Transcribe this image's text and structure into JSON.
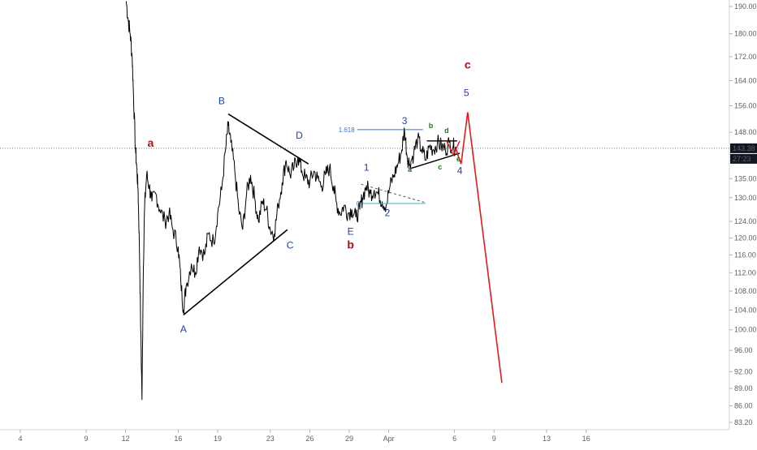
{
  "chart_data": {
    "type": "line",
    "y_axis": {
      "ticks": [
        "190.00",
        "180.00",
        "172.00",
        "164.00",
        "156.00",
        "148.00",
        "143.38",
        "135.00",
        "130.00",
        "124.00",
        "120.00",
        "116.00",
        "112.00",
        "108.00",
        "104.00",
        "100.00",
        "96.00",
        "92.00",
        "89.00",
        "86.00",
        "83.20"
      ],
      "last_price": "143.38",
      "countdown": "27:23",
      "scale": "log"
    },
    "x_axis": {
      "ticks": [
        "4",
        "9",
        "12",
        "16",
        "19",
        "23",
        "26",
        "29",
        "Apr",
        "6",
        "9",
        "13",
        "16"
      ]
    },
    "series": [
      {
        "values": [
          [
            12.05,
            192
          ],
          [
            12.2,
            185
          ],
          [
            12.35,
            180
          ],
          [
            12.5,
            172
          ],
          [
            12.6,
            160
          ],
          [
            12.75,
            143
          ],
          [
            12.85,
            138
          ],
          [
            12.95,
            132
          ],
          [
            13.05,
            118
          ],
          [
            13.15,
            100
          ],
          [
            13.25,
            87
          ],
          [
            13.35,
            113
          ],
          [
            13.45,
            128
          ],
          [
            13.6,
            136
          ],
          [
            13.8,
            133
          ],
          [
            14.0,
            129
          ],
          [
            14.3,
            131
          ],
          [
            14.6,
            127
          ],
          [
            15.0,
            124
          ],
          [
            15.3,
            126
          ],
          [
            15.6,
            122
          ],
          [
            16.0,
            118
          ],
          [
            16.2,
            110
          ],
          [
            16.4,
            104
          ],
          [
            16.6,
            109
          ],
          [
            17.0,
            114
          ],
          [
            17.3,
            112
          ],
          [
            17.6,
            118
          ],
          [
            18.0,
            116
          ],
          [
            18.3,
            121
          ],
          [
            18.7,
            119
          ],
          [
            19.0,
            126
          ],
          [
            19.3,
            132
          ],
          [
            19.6,
            143
          ],
          [
            19.8,
            150
          ],
          [
            20.0,
            145
          ],
          [
            20.3,
            137
          ],
          [
            20.6,
            127
          ],
          [
            20.9,
            122
          ],
          [
            21.2,
            131
          ],
          [
            21.5,
            136
          ],
          [
            21.8,
            130
          ],
          [
            22.1,
            124
          ],
          [
            22.4,
            129
          ],
          [
            22.7,
            127
          ],
          [
            23.0,
            122
          ],
          [
            23.3,
            121
          ],
          [
            23.6,
            128
          ],
          [
            23.9,
            134
          ],
          [
            24.2,
            140
          ],
          [
            24.5,
            136
          ],
          [
            24.8,
            138
          ],
          [
            25.1,
            141
          ],
          [
            25.4,
            137
          ],
          [
            25.7,
            135
          ],
          [
            26.0,
            134
          ],
          [
            26.3,
            137
          ],
          [
            26.6,
            135
          ],
          [
            26.9,
            133
          ],
          [
            27.2,
            136
          ],
          [
            27.5,
            138
          ],
          [
            27.8,
            133
          ],
          [
            28.0,
            129
          ],
          [
            28.3,
            126
          ],
          [
            28.6,
            128
          ],
          [
            28.9,
            126
          ],
          [
            29.2,
            127
          ],
          [
            29.5,
            125
          ],
          [
            29.8,
            127
          ],
          [
            30.0,
            130
          ],
          [
            30.3,
            133
          ],
          [
            30.6,
            131
          ],
          [
            30.9,
            132
          ],
          [
            31.2,
            131
          ],
          [
            31.5,
            129
          ],
          [
            31.8,
            128
          ],
          [
            32.1,
            133
          ],
          [
            32.4,
            136
          ],
          [
            32.7,
            139
          ],
          [
            33.0,
            143
          ],
          [
            33.2,
            149
          ],
          [
            33.4,
            141
          ],
          [
            33.6,
            139
          ],
          [
            33.9,
            142
          ],
          [
            34.2,
            146
          ],
          [
            34.5,
            143
          ],
          [
            34.8,
            140
          ],
          [
            35.1,
            144
          ],
          [
            35.4,
            143
          ],
          [
            35.7,
            145
          ],
          [
            36.0,
            144
          ],
          [
            36.3,
            143
          ],
          [
            36.6,
            145
          ],
          [
            36.9,
            144
          ],
          [
            37.1,
            143.38
          ]
        ]
      },
      {
        "values": [
          [
            37.1,
            143.38
          ],
          [
            37.3,
            141
          ],
          [
            37.5,
            139
          ],
          [
            38.0,
            154
          ],
          [
            40.6,
            90
          ]
        ]
      }
    ]
  },
  "wave_labels": {
    "A": "A",
    "B": "B",
    "C": "C",
    "D": "D",
    "E": "E",
    "one": "1",
    "two": "2",
    "three": "3",
    "four": "4",
    "five": "5",
    "a_minor": "a",
    "b_minor": "b",
    "c_minor": "c",
    "d_minor": "d",
    "e_minor": "e",
    "a_major": "a",
    "b_major": "b",
    "c_major": "c"
  },
  "fib": {
    "level_618": "1.618",
    "level_0": "0"
  },
  "colors": {
    "price": "#000000",
    "forecast": "#e01b1b",
    "wave_blue": "#1f3fa8",
    "wave_red": "#b01010",
    "wave_green": "#1f7a1f",
    "fib": "#3a70d8",
    "fib_zero": "#3fb6c9",
    "axis_text": "#5d606b",
    "label_bg": "#131722"
  }
}
